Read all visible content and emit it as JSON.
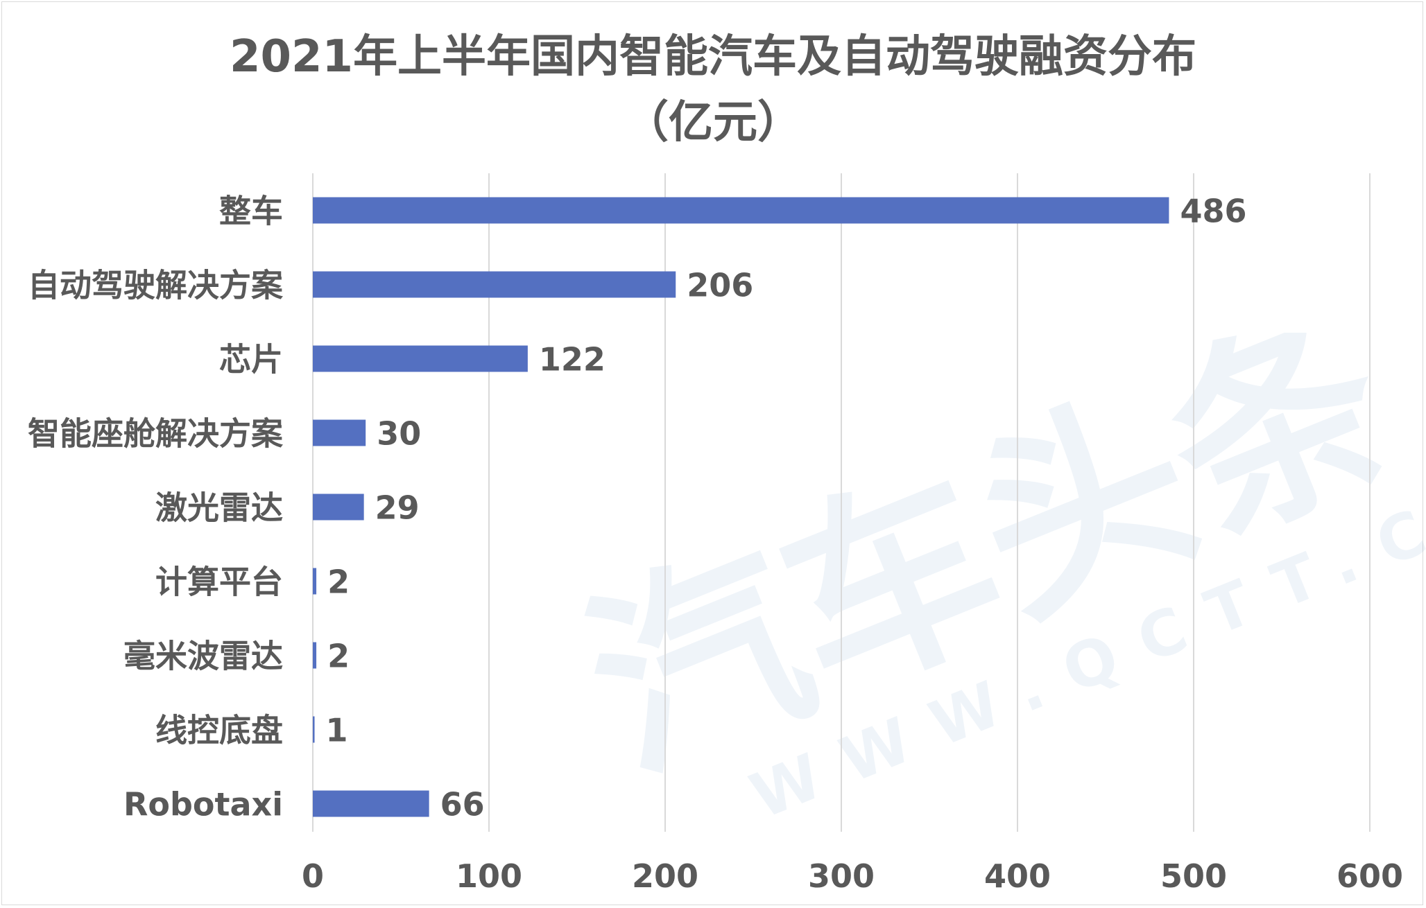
{
  "chart_data": {
    "type": "bar",
    "orientation": "horizontal",
    "title": "2021年上半年国内智能汽车及自动驾驶融资分布",
    "subtitle": "（亿元）",
    "categories": [
      "整车",
      "自动驾驶解决方案",
      "芯片",
      "智能座舱解决方案",
      "激光雷达",
      "计算平台",
      "毫米波雷达",
      "线控底盘",
      "Robotaxi"
    ],
    "values": [
      486,
      206,
      122,
      30,
      29,
      2,
      2,
      1,
      66
    ],
    "data_labels": [
      "486",
      "206",
      "122",
      "30",
      "29",
      "2",
      "2",
      "1",
      "66"
    ],
    "xlim": [
      0,
      600
    ],
    "x_ticks": [
      "0",
      "100",
      "200",
      "300",
      "400",
      "500",
      "600"
    ],
    "grid": "vertical",
    "legend": "none",
    "bar_color": "#5470c1"
  },
  "watermark": {
    "text": "汽车头条",
    "url": "WWW.QCTT.CN"
  },
  "colors": {
    "text": "#595959",
    "grid": "#d9d9d9",
    "watermark": "#2a6fb8"
  }
}
